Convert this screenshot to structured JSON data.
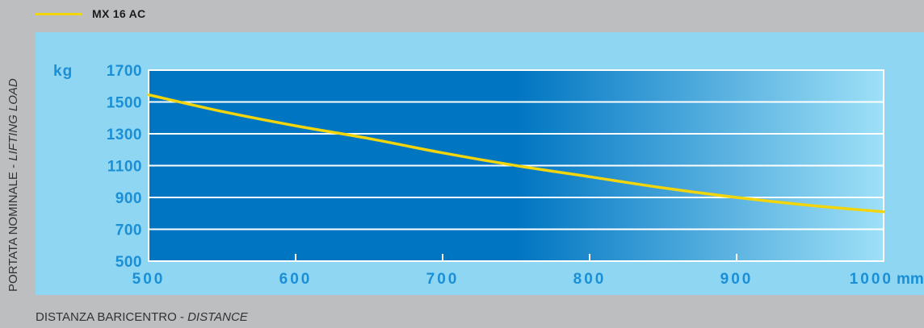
{
  "legend": {
    "label": "MX 16 AC"
  },
  "colors": {
    "page_background": "#bdbec0",
    "panel_background": "#8fd6f3",
    "plot_dark": "#0075c2",
    "plot_light": "#9ee0f7",
    "tick_text": "#1b8fd6",
    "curve": "#f2d50b",
    "grid": "#ffffff"
  },
  "axes": {
    "y_label_main": "PORTATA NOMINALE - ",
    "y_label_italic": "LIFTING LOAD",
    "x_label_main": "DISTANZA BARICENTRO - ",
    "x_label_italic": "DISTANCE"
  },
  "chart_data": {
    "type": "line",
    "title": "",
    "xlabel": "DISTANZA BARICENTRO - DISTANCE",
    "ylabel": "PORTATA NOMINALE - LIFTING LOAD",
    "x_unit": "mm",
    "y_unit": "kg",
    "xlim": [
      500,
      1000
    ],
    "ylim": [
      500,
      1700
    ],
    "x_ticks": [
      500,
      600,
      700,
      800,
      900,
      1000
    ],
    "y_ticks": [
      500,
      700,
      900,
      1100,
      1300,
      1500,
      1700
    ],
    "grid": true,
    "legend_position": "top-left",
    "series": [
      {
        "name": "MX 16 AC",
        "x": [
          500,
          550,
          600,
          650,
          700,
          750,
          800,
          850,
          900,
          950,
          1000
        ],
        "y": [
          1545,
          1440,
          1350,
          1270,
          1180,
          1100,
          1030,
          960,
          900,
          850,
          810
        ]
      }
    ]
  }
}
